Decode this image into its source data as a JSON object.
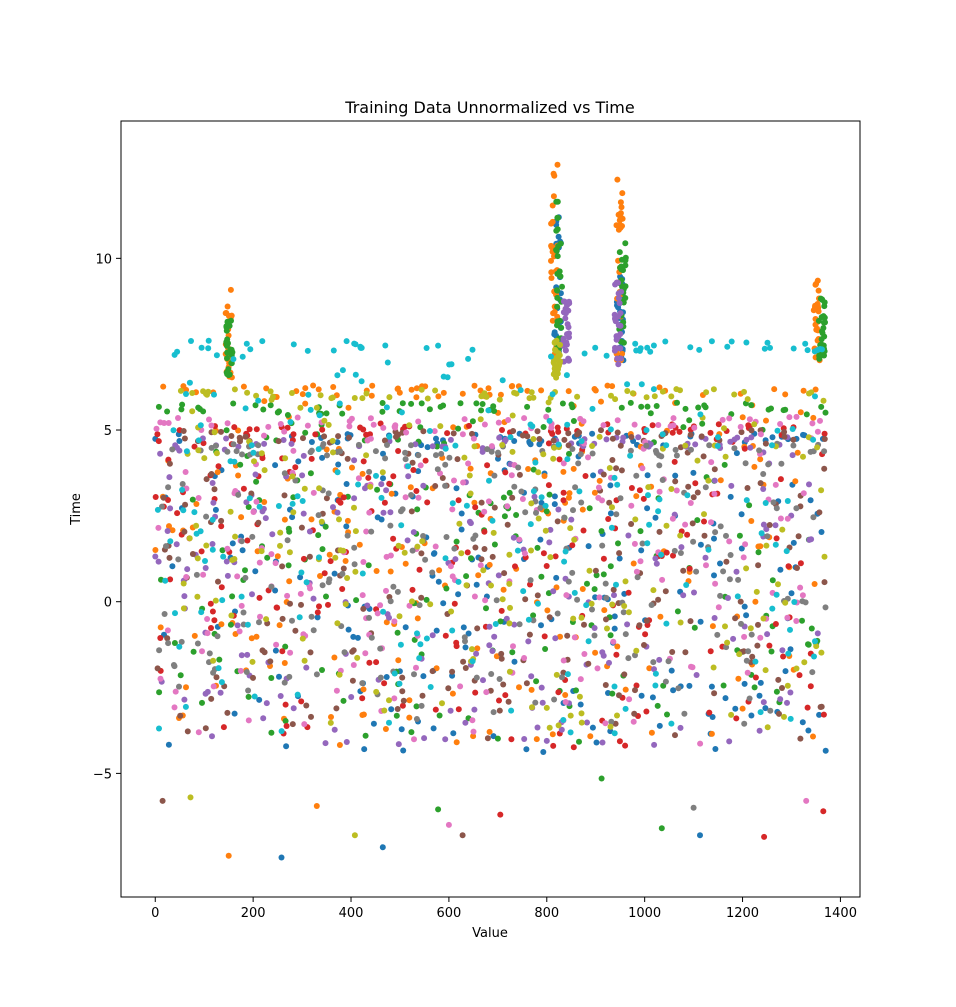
{
  "chart_data": {
    "type": "scatter",
    "title": "Training Data Unnormalized vs Time",
    "xlabel": "Value",
    "ylabel": "Time",
    "xlim": [
      -70,
      1440
    ],
    "ylim": [
      -8.6,
      14
    ],
    "xticks": [
      0,
      200,
      400,
      600,
      800,
      1000,
      1200,
      1400
    ],
    "xtick_labels": [
      "0",
      "200",
      "400",
      "600",
      "800",
      "1000",
      "1200",
      "1400"
    ],
    "yticks": [
      -5,
      0,
      5,
      10
    ],
    "ytick_labels": [
      "−5",
      "0",
      "5",
      "10"
    ],
    "grid": false,
    "legend": "none",
    "n_points_per_series": 1371,
    "marker": "circle",
    "series": [
      {
        "color": "#1f77b4",
        "band": [
          -4.4,
          4.9
        ],
        "spikes": [
          {
            "x": 822,
            "lo": 7,
            "hi": 11.3
          },
          {
            "x": 950,
            "lo": 6.9,
            "hi": 9.5
          }
        ]
      },
      {
        "color": "#ff7f0e",
        "band": [
          -4.2,
          6.3
        ],
        "spikes": [
          {
            "x": 150,
            "lo": 6.5,
            "hi": 9.1
          },
          {
            "x": 815,
            "lo": 7,
            "hi": 12.9
          },
          {
            "x": 948,
            "lo": 7,
            "hi": 12.3
          },
          {
            "x": 1352,
            "lo": 7,
            "hi": 9.6
          }
        ]
      },
      {
        "color": "#2ca02c",
        "band": [
          -4.1,
          5.8
        ],
        "spikes": [
          {
            "x": 152,
            "lo": 6.6,
            "hi": 8.2
          },
          {
            "x": 825,
            "lo": 7,
            "hi": 11.8
          },
          {
            "x": 955,
            "lo": 7,
            "hi": 10.5
          },
          {
            "x": 1362,
            "lo": 7,
            "hi": 8.9
          }
        ]
      },
      {
        "color": "#d62728",
        "band": [
          -4.3,
          5.2
        ],
        "spikes": []
      },
      {
        "color": "#9467bd",
        "band": [
          -4.2,
          4.8
        ],
        "spikes": [
          {
            "x": 840,
            "lo": 6.9,
            "hi": 8.9
          },
          {
            "x": 945,
            "lo": 6.9,
            "hi": 9.4
          }
        ]
      },
      {
        "color": "#8c564b",
        "band": [
          -4.0,
          5.0
        ],
        "spikes": []
      },
      {
        "color": "#e377c2",
        "band": [
          -4.2,
          5.4
        ],
        "spikes": []
      },
      {
        "color": "#7f7f7f",
        "band": [
          -3.6,
          4.6
        ],
        "spikes": []
      },
      {
        "color": "#bcbd22",
        "band": [
          -3.9,
          6.2
        ],
        "spikes": [
          {
            "x": 820,
            "lo": 6.5,
            "hi": 7.6
          }
        ]
      },
      {
        "color": "#17becf",
        "band": [
          -4.0,
          7.6
        ],
        "spikes": []
      }
    ],
    "outliers": [
      {
        "x": 150,
        "y": -7.4,
        "color": "#ff7f0e"
      },
      {
        "x": 258,
        "y": -7.45,
        "color": "#1f77b4"
      },
      {
        "x": 408,
        "y": -6.8,
        "color": "#bcbd22"
      },
      {
        "x": 465,
        "y": -7.15,
        "color": "#1f77b4"
      },
      {
        "x": 600,
        "y": -6.5,
        "color": "#e377c2"
      },
      {
        "x": 628,
        "y": -6.8,
        "color": "#8c564b"
      },
      {
        "x": 705,
        "y": -6.2,
        "color": "#d62728"
      },
      {
        "x": 1035,
        "y": -6.6,
        "color": "#2ca02c"
      },
      {
        "x": 1113,
        "y": -6.8,
        "color": "#1f77b4"
      },
      {
        "x": 1244,
        "y": -6.85,
        "color": "#d62728"
      },
      {
        "x": 1365,
        "y": -6.1,
        "color": "#d62728"
      },
      {
        "x": 15,
        "y": -5.8,
        "color": "#8c564b"
      },
      {
        "x": 72,
        "y": -5.7,
        "color": "#bcbd22"
      },
      {
        "x": 330,
        "y": -5.95,
        "color": "#ff7f0e"
      },
      {
        "x": 578,
        "y": -6.05,
        "color": "#2ca02c"
      },
      {
        "x": 912,
        "y": -5.15,
        "color": "#2ca02c"
      },
      {
        "x": 1100,
        "y": -6.0,
        "color": "#7f7f7f"
      },
      {
        "x": 1330,
        "y": -5.8,
        "color": "#e377c2"
      }
    ]
  }
}
